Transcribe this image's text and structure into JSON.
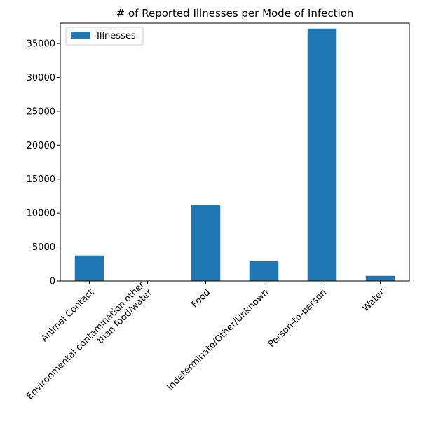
{
  "chart_data": {
    "type": "bar",
    "title": "# of Reported Illnesses per Mode of Infection",
    "xlabel": "",
    "ylabel": "",
    "categories": [
      [
        "Animal Contact"
      ],
      [
        "Environmental contamination other",
        "than food/water"
      ],
      [
        "Food"
      ],
      [
        "Indeterminate/Other/Unknown"
      ],
      [
        "Person-to-person"
      ],
      [
        "Water"
      ]
    ],
    "series": [
      {
        "name": "Illnesses",
        "values": [
          3750,
          20,
          11250,
          2900,
          37200,
          750
        ]
      }
    ],
    "ylim": [
      0,
      38000
    ],
    "yticks": [
      0,
      5000,
      10000,
      15000,
      20000,
      25000,
      30000,
      35000
    ],
    "grid": false,
    "legend_position": "top-left",
    "colors": {
      "bar": "#1f77b4",
      "axis": "#000000",
      "legend_border": "#cccccc"
    }
  }
}
